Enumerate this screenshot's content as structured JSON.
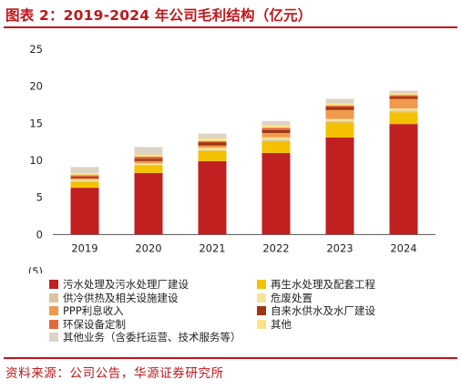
{
  "title": "图表 2：2019-2024 年公司毛利结构（亿元）",
  "source": "资料来源：公司公告，华源证券研究所",
  "chart_data": {
    "type": "bar",
    "stacked": true,
    "categories": [
      "2019",
      "2020",
      "2021",
      "2022",
      "2023",
      "2024"
    ],
    "ylim": [
      -5,
      25
    ],
    "yticks": [
      "(5)",
      "0",
      "5",
      "10",
      "15",
      "20",
      "25"
    ],
    "ytick_values": [
      -5,
      0,
      5,
      10,
      15,
      20,
      25
    ],
    "series": [
      {
        "name": "污水处理及污水处理厂建设",
        "color": "#c0201f",
        "values": [
          6.3,
          8.3,
          9.9,
          11.0,
          13.1,
          14.9
        ]
      },
      {
        "name": "再生水处理及配套工程",
        "color": "#f3c100",
        "values": [
          0.8,
          1.0,
          1.4,
          1.6,
          2.0,
          1.6
        ]
      },
      {
        "name": "供冷供热及相关设施建设",
        "color": "#dcc39e",
        "values": [
          0.1,
          0.1,
          0.1,
          0.2,
          0.2,
          0.2
        ]
      },
      {
        "name": "危废处置",
        "color": "#f7e39a",
        "values": [
          0.2,
          0.2,
          0.3,
          0.3,
          0.3,
          0.3
        ]
      },
      {
        "name": "PPP利息收入",
        "color": "#ef9a4c",
        "values": [
          0.2,
          0.3,
          0.3,
          0.6,
          1.2,
          1.3
        ]
      },
      {
        "name": "自来水供水及水厂建设",
        "color": "#9c3510",
        "values": [
          0.2,
          0.3,
          0.4,
          0.4,
          0.4,
          0.3
        ]
      },
      {
        "name": "环保设备定制",
        "color": "#e5673f",
        "values": [
          0.2,
          0.3,
          0.2,
          0.3,
          0.2,
          0.2
        ]
      },
      {
        "name": "其他",
        "color": "#fbe287",
        "values": [
          0.3,
          0.3,
          0.4,
          0.3,
          0.3,
          0.3
        ]
      },
      {
        "name": "其他业务（含委托运营、技术服务等）",
        "color": "#ddd3c4",
        "values": [
          0.8,
          1.0,
          0.6,
          0.6,
          0.6,
          0.3
        ]
      }
    ],
    "xlabel": "",
    "ylabel": "",
    "grid": false,
    "legend_position": "bottom",
    "legend_columns": 2
  }
}
